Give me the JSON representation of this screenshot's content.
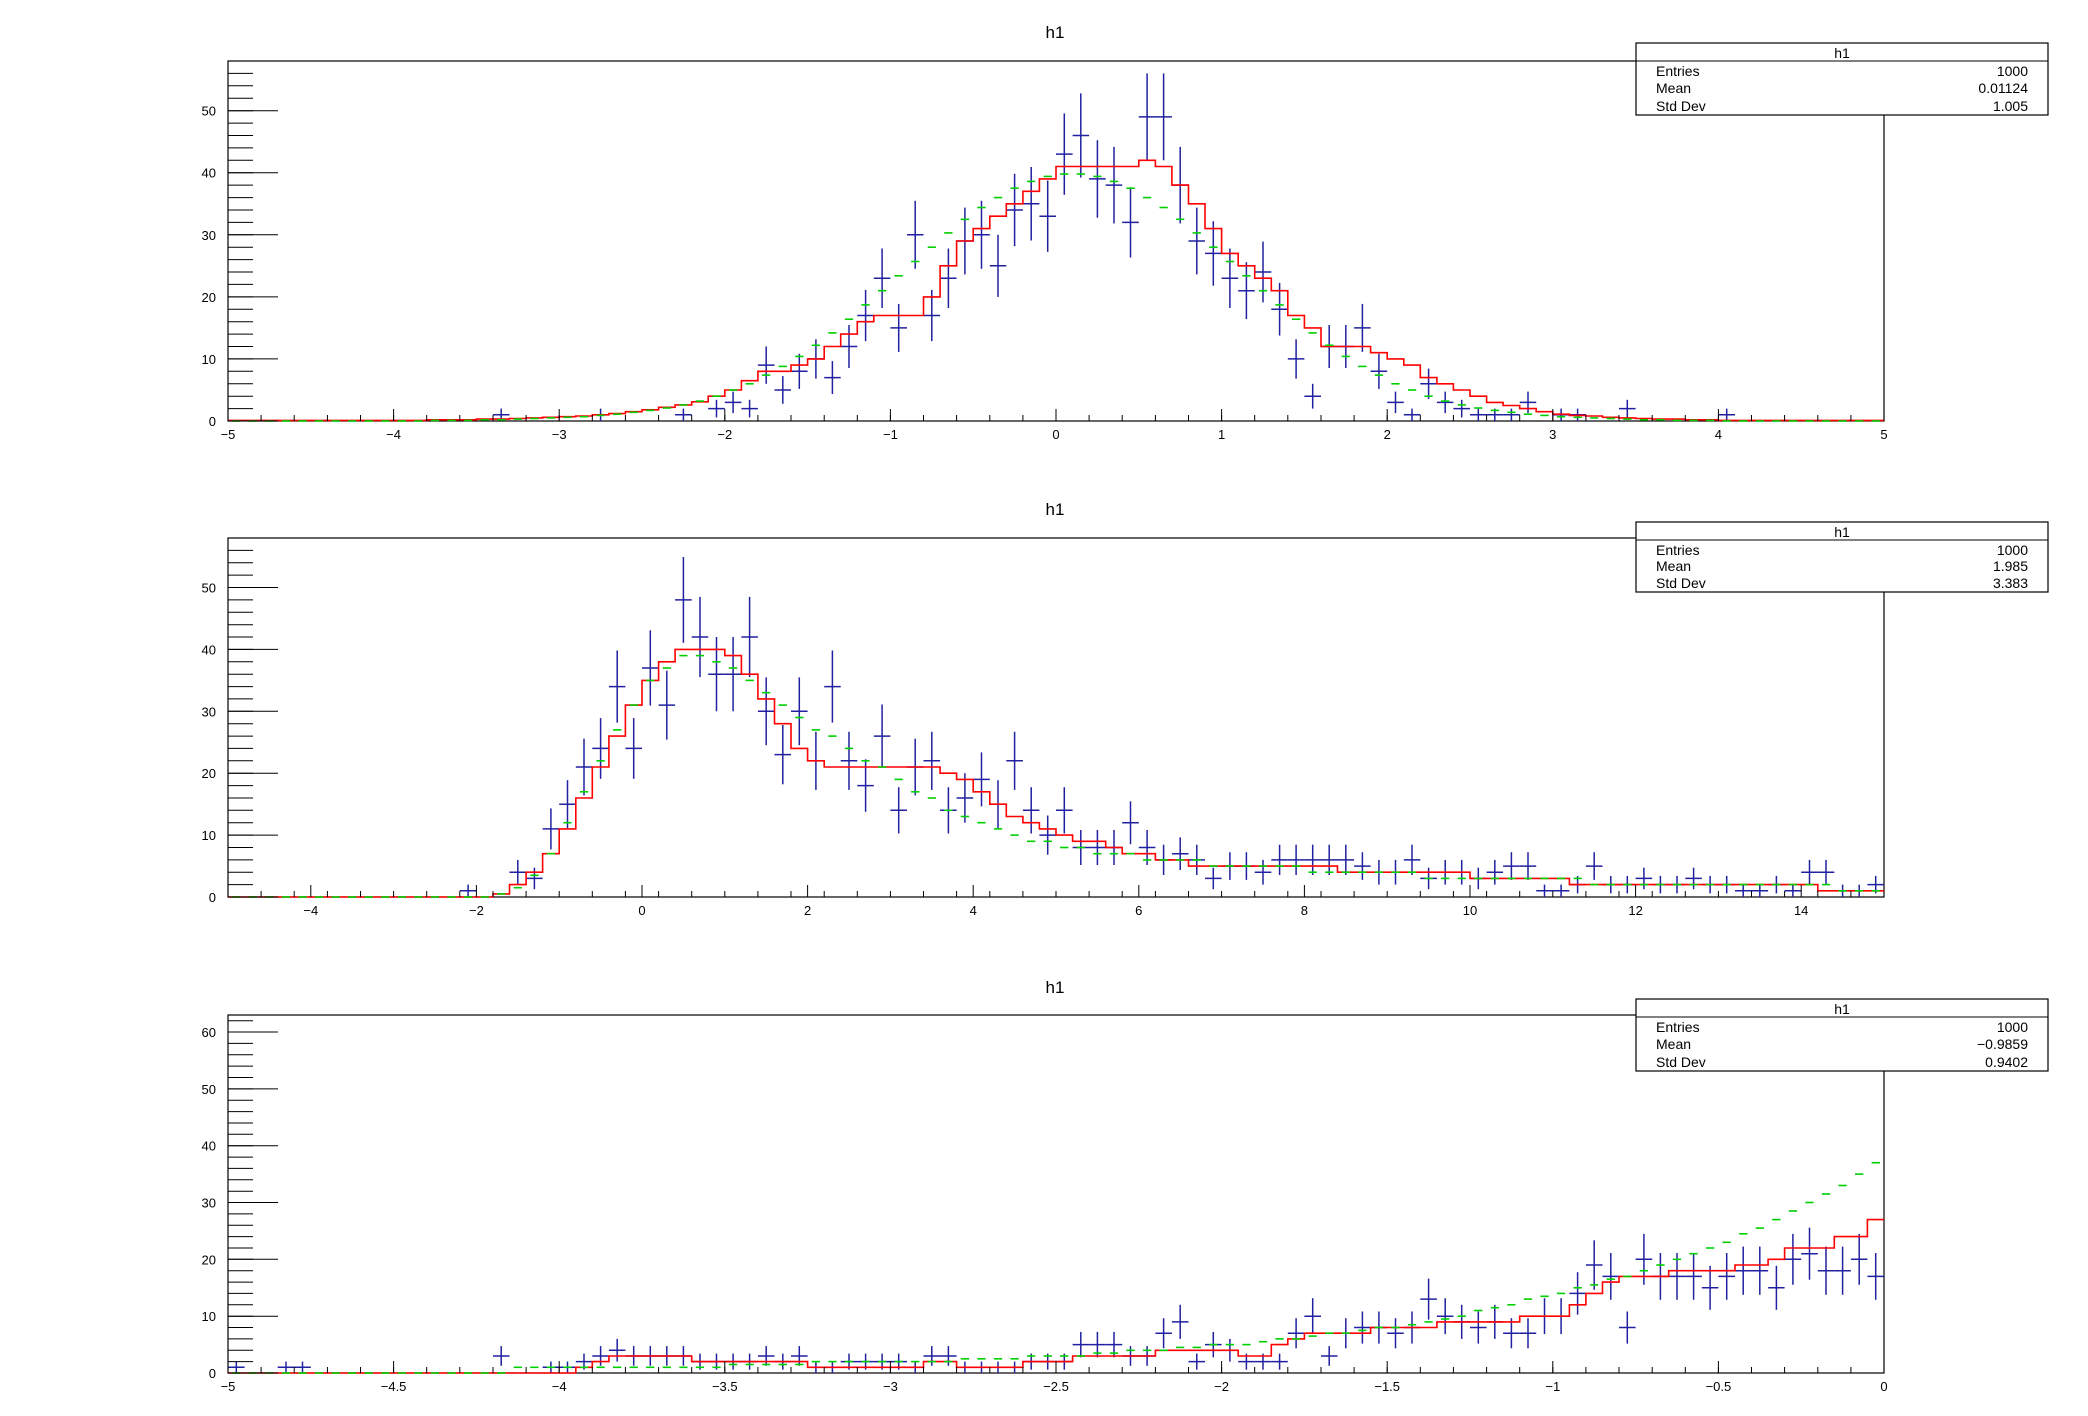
{
  "chart_data": [
    {
      "type": "histogram",
      "title": "h1",
      "xlim": [
        -5,
        5
      ],
      "ylim": [
        0,
        58
      ],
      "x_ticks": [
        -5,
        -4,
        -3,
        -2,
        -1,
        0,
        1,
        2,
        3,
        4,
        5
      ],
      "x_tick_labels": [
        "−5",
        "−4",
        "−3",
        "−2",
        "−1",
        "0",
        "1",
        "2",
        "3",
        "4",
        "5"
      ],
      "y_ticks": [
        0,
        10,
        20,
        30,
        40,
        50
      ],
      "grid": false,
      "stats_box": {
        "title": "h1",
        "rows": [
          {
            "label": "Entries",
            "value": "1000"
          },
          {
            "label": "Mean",
            "value": "0.01124"
          },
          {
            "label": "Std Dev",
            "value": "1.005"
          }
        ]
      },
      "bins": {
        "xmin": -5,
        "xmax": 5,
        "n": 100
      },
      "series": [
        {
          "color": "#2020a0",
          "style": "errorbars",
          "values": [
            0,
            0,
            0,
            0,
            0,
            0,
            0,
            0,
            0,
            0,
            0,
            0,
            0,
            0,
            0,
            0,
            1,
            0,
            0,
            0,
            0,
            0,
            1,
            0,
            0,
            0,
            0,
            1,
            0,
            2,
            3,
            2,
            9,
            5,
            8,
            10,
            7,
            12,
            17,
            23,
            15,
            30,
            17,
            23,
            29,
            30,
            25,
            34,
            35,
            33,
            43,
            46,
            39,
            38,
            32,
            49,
            49,
            38,
            29,
            27,
            23,
            21,
            24,
            18,
            10,
            4,
            12,
            12,
            15,
            8,
            3,
            1,
            6,
            3,
            2,
            1,
            1,
            1,
            3,
            0,
            1,
            1,
            0,
            0,
            2,
            0,
            0,
            0,
            0,
            0,
            1,
            0,
            0,
            0,
            0,
            0,
            0,
            0,
            0,
            0
          ]
        },
        {
          "color": "#ff0000",
          "style": "step",
          "values": [
            0.1,
            0.1,
            0.1,
            0.1,
            0.1,
            0.1,
            0.1,
            0.1,
            0.1,
            0.1,
            0.1,
            0.1,
            0.2,
            0.2,
            0.2,
            0.3,
            0.3,
            0.4,
            0.5,
            0.6,
            0.7,
            0.8,
            1.0,
            1.2,
            1.5,
            1.8,
            2.2,
            2.6,
            3.1,
            4.0,
            5.0,
            6.5,
            8,
            8,
            9,
            10,
            12,
            14,
            16,
            17,
            17,
            17,
            20,
            25,
            29,
            31,
            33,
            35,
            37,
            39,
            41,
            41,
            41,
            41,
            41,
            42,
            41,
            38,
            35,
            31,
            27,
            25,
            23,
            21,
            17,
            15,
            12,
            12,
            12,
            11,
            10,
            9,
            7,
            6,
            5,
            4,
            3,
            2.5,
            2,
            1.5,
            1.1,
            0.9,
            0.8,
            0.6,
            0.5,
            0.4,
            0.3,
            0.3,
            0.2,
            0.2,
            0.1,
            0.1,
            0.1,
            0.1,
            0.1,
            0.1,
            0.1,
            0.1,
            0.1,
            0.1
          ]
        },
        {
          "color": "#00d000",
          "style": "markers",
          "values": [
            0,
            0,
            0,
            0,
            0,
            0,
            0,
            0,
            0,
            0,
            0,
            0,
            0.1,
            0.1,
            0.1,
            0.2,
            0.2,
            0.3,
            0.4,
            0.5,
            0.6,
            0.7,
            0.9,
            1.1,
            1.4,
            1.7,
            2.1,
            2.6,
            3.2,
            4.0,
            5.0,
            6.0,
            7.4,
            8.8,
            10.4,
            12.2,
            14.2,
            16.4,
            18.7,
            21.0,
            23.4,
            25.7,
            28.0,
            30.3,
            32.5,
            34.4,
            36.0,
            37.5,
            38.6,
            39.4,
            39.8,
            39.8,
            39.4,
            38.6,
            37.5,
            36.0,
            34.4,
            32.5,
            30.3,
            28.0,
            25.7,
            23.4,
            21.0,
            18.7,
            16.4,
            14.2,
            12.2,
            10.4,
            8.8,
            7.4,
            6.0,
            5.0,
            4.0,
            3.2,
            2.6,
            2.1,
            1.7,
            1.4,
            1.1,
            0.9,
            0.7,
            0.6,
            0.5,
            0.4,
            0.3,
            0.2,
            0.2,
            0.1,
            0.1,
            0.1,
            0,
            0,
            0,
            0,
            0,
            0,
            0,
            0,
            0,
            0
          ]
        }
      ]
    },
    {
      "type": "histogram",
      "title": "h1",
      "xlim": [
        -5,
        15
      ],
      "ylim": [
        0,
        58
      ],
      "x_ticks": [
        -4,
        -2,
        0,
        2,
        4,
        6,
        8,
        10,
        12,
        14
      ],
      "x_tick_labels": [
        "−4",
        "−2",
        "0",
        "2",
        "4",
        "6",
        "8",
        "10",
        "12",
        "14"
      ],
      "y_ticks": [
        0,
        10,
        20,
        30,
        40,
        50
      ],
      "grid": false,
      "stats_box": {
        "title": "h1",
        "rows": [
          {
            "label": "Entries",
            "value": "1000"
          },
          {
            "label": "Mean",
            "value": "1.985"
          },
          {
            "label": "Std Dev",
            "value": "3.383"
          }
        ]
      },
      "bins": {
        "xmin": -5,
        "xmax": 15,
        "n": 100
      },
      "series": [
        {
          "color": "#2020a0",
          "style": "errorbars",
          "values": [
            0,
            0,
            0,
            0,
            0,
            0,
            0,
            0,
            0,
            0,
            0,
            0,
            0,
            0,
            1,
            0,
            0,
            4,
            3,
            11,
            15,
            21,
            24,
            34,
            24,
            37,
            31,
            48,
            42,
            36,
            36,
            42,
            30,
            23,
            30,
            22,
            34,
            22,
            18,
            26,
            14,
            21,
            22,
            14,
            16,
            19,
            15,
            22,
            14,
            10,
            14,
            8,
            8,
            8,
            12,
            8,
            6,
            7,
            6,
            3,
            5,
            5,
            4,
            6,
            6,
            6,
            6,
            6,
            5,
            4,
            4,
            6,
            3,
            4,
            4,
            3,
            4,
            5,
            5,
            1,
            1,
            2,
            5,
            2,
            2,
            3,
            2,
            2,
            3,
            2,
            2,
            1,
            1,
            2,
            1,
            4,
            4,
            1,
            1,
            2
          ]
        },
        {
          "color": "#ff0000",
          "style": "step",
          "values": [
            0,
            0,
            0,
            0,
            0,
            0,
            0,
            0,
            0,
            0,
            0,
            0,
            0,
            0,
            0,
            0,
            0.5,
            2,
            4,
            7,
            11,
            16,
            21,
            26,
            31,
            35,
            38,
            40,
            40,
            40,
            39,
            36,
            32,
            28,
            24,
            22,
            21,
            21,
            21,
            21,
            21,
            21,
            21,
            20,
            19,
            17,
            15,
            13,
            12,
            11,
            10,
            9,
            9,
            8,
            7,
            7,
            6,
            6,
            5,
            5,
            5,
            5,
            5,
            5,
            5,
            5,
            5,
            4,
            4,
            4,
            4,
            4,
            4,
            4,
            4,
            3,
            3,
            3,
            3,
            3,
            3,
            2,
            2,
            2,
            2,
            2,
            2,
            2,
            2,
            2,
            2,
            2,
            2,
            2,
            2,
            2,
            1,
            1,
            1,
            1
          ]
        },
        {
          "color": "#00d000",
          "style": "markers",
          "values": [
            0,
            0,
            0,
            0,
            0,
            0,
            0,
            0,
            0,
            0,
            0,
            0,
            0,
            0,
            0,
            0,
            0.5,
            1.5,
            3.5,
            7,
            12,
            17,
            22,
            27,
            31,
            35,
            37,
            39,
            39,
            38,
            37,
            35,
            33,
            31,
            29,
            27,
            26,
            24,
            22,
            21,
            19,
            17,
            16,
            14,
            13,
            12,
            11,
            10,
            9,
            9,
            8,
            8,
            7,
            7,
            7,
            6,
            6,
            6,
            6,
            5,
            5,
            5,
            5,
            5,
            5,
            4,
            4,
            4,
            4,
            4,
            4,
            4,
            3,
            3,
            3,
            3,
            3,
            3,
            3,
            3,
            3,
            3,
            2,
            2,
            2,
            2,
            2,
            2,
            2,
            2,
            2,
            2,
            2,
            2,
            2,
            2,
            2,
            1,
            1,
            1
          ]
        }
      ]
    },
    {
      "type": "histogram",
      "title": "h1",
      "xlim": [
        -5,
        0
      ],
      "ylim": [
        0,
        63
      ],
      "x_ticks": [
        -5,
        -4.5,
        -4,
        -3.5,
        -3,
        -2.5,
        -2,
        -1.5,
        -1,
        -0.5,
        0
      ],
      "x_tick_labels": [
        "−5",
        "−4.5",
        "−4",
        "−3.5",
        "−3",
        "−2.5",
        "−2",
        "−1.5",
        "−1",
        "−0.5",
        "0"
      ],
      "y_ticks": [
        0,
        10,
        20,
        30,
        40,
        50,
        60
      ],
      "grid": false,
      "stats_box": {
        "title": "h1",
        "rows": [
          {
            "label": "Entries",
            "value": "1000"
          },
          {
            "label": "Mean",
            "value": "−0.9859"
          },
          {
            "label": "Std Dev",
            "value": "0.9402"
          }
        ]
      },
      "bins": {
        "xmin": -5,
        "xmax": 0,
        "n": 100
      },
      "series": [
        {
          "color": "#2020a0",
          "style": "errorbars",
          "values": [
            1,
            0,
            0,
            1,
            1,
            0,
            0,
            0,
            0,
            0,
            0,
            0,
            0,
            0,
            0,
            0,
            3,
            0,
            0,
            1,
            1,
            2,
            3,
            4,
            3,
            3,
            3,
            3,
            2,
            2,
            2,
            2,
            3,
            2,
            3,
            1,
            1,
            2,
            2,
            2,
            2,
            1,
            3,
            3,
            1,
            1,
            1,
            1,
            2,
            2,
            2,
            5,
            5,
            5,
            3,
            3,
            7,
            9,
            2,
            5,
            4,
            2,
            2,
            2,
            7,
            10,
            3,
            7,
            8,
            8,
            7,
            8,
            13,
            10,
            9,
            8,
            9,
            7,
            7,
            10,
            10,
            14,
            19,
            17,
            8,
            20,
            17,
            17,
            17,
            15,
            17,
            18,
            18,
            15,
            20,
            21,
            18,
            18,
            20,
            17
          ]
        },
        {
          "color": "#ff0000",
          "style": "step",
          "values": [
            0,
            0,
            0,
            0,
            0,
            0,
            0,
            0,
            0,
            0,
            0,
            0,
            0,
            0,
            0,
            0,
            0,
            0,
            0,
            0,
            0,
            1,
            2,
            3,
            3,
            3,
            3,
            3,
            2,
            2,
            2,
            2,
            2,
            2,
            2,
            1,
            1,
            1,
            1,
            1,
            1,
            1,
            2,
            2,
            1,
            1,
            1,
            1,
            2,
            2,
            2,
            3,
            3,
            3,
            3,
            3,
            4,
            4,
            4,
            4,
            4,
            3,
            3,
            5,
            6,
            7,
            7,
            7,
            7,
            8,
            8,
            8,
            8,
            9,
            9,
            9,
            9,
            9,
            10,
            10,
            10,
            12,
            14,
            16,
            17,
            17,
            17,
            18,
            18,
            18,
            18,
            19,
            19,
            20,
            22,
            22,
            22,
            24,
            24,
            27
          ]
        },
        {
          "color": "#00d000",
          "style": "markers",
          "values": [
            0,
            0,
            0,
            0,
            0,
            0,
            0,
            0,
            0,
            0,
            0,
            0,
            0,
            0,
            0,
            0,
            0,
            1,
            1,
            1,
            1,
            1,
            1,
            1,
            1,
            1,
            1,
            1,
            1,
            1,
            1.5,
            1.5,
            1.5,
            1.5,
            1.5,
            2,
            2,
            2,
            2,
            2,
            2,
            2,
            2,
            2,
            2.5,
            2.5,
            2.5,
            2.5,
            3,
            3,
            3,
            3,
            3.5,
            3.5,
            4,
            4,
            4,
            4.5,
            4.5,
            5,
            5,
            5,
            5.5,
            6,
            6,
            6.5,
            7,
            7,
            7.5,
            8,
            8,
            8.5,
            9,
            9.5,
            10,
            11,
            11.5,
            12,
            13,
            13.5,
            14,
            15,
            15.5,
            16.5,
            17,
            18,
            19,
            20,
            21,
            22,
            23,
            24.5,
            25.5,
            27,
            28.5,
            30,
            31.5,
            33,
            35,
            37
          ]
        }
      ]
    }
  ]
}
